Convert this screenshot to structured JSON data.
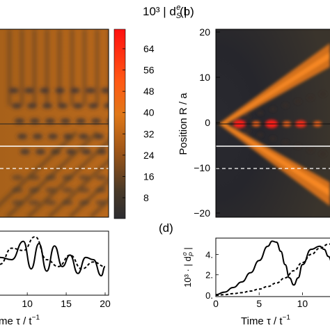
{
  "figure": {
    "colorbar_title": "10³ | d",
    "colorbar_title_sub": "S",
    "colorbar_title_sup": "e",
    "colorbar_title_end": " |",
    "colorbar_ticks": [
      "64",
      "56",
      "48",
      "40",
      "32",
      "24",
      "16",
      "8"
    ],
    "panel_labels": {
      "b": "(b)",
      "d": "(d)"
    }
  },
  "heatmaps": {
    "a": {
      "x_unit": "τ / t⁻¹"
    },
    "b": {
      "ylabel": "Position R / a",
      "yticks": [
        "20",
        "10",
        "0",
        "−10",
        "−20"
      ],
      "ylim": [
        -20,
        20
      ]
    }
  },
  "chart_data": [
    {
      "panel": "c",
      "type": "line",
      "xlabel": "Time τ / t⁻¹",
      "xlabel_visible": "me τ / t",
      "xlabel_sup": "−1",
      "xticks": [
        "10",
        "15",
        "20"
      ],
      "xlim": [
        6.5,
        20
      ],
      "series": [
        {
          "style": "solid",
          "x": [
            6.5,
            8,
            9.5,
            10.5,
            11.5,
            12.5,
            13.5,
            14.5,
            15.5,
            16.5,
            17.5,
            18.5,
            19.5,
            20
          ],
          "y": [
            0.55,
            0.5,
            0.9,
            0.3,
            0.85,
            0.25,
            0.8,
            0.35,
            0.6,
            0.2,
            0.55,
            0.5,
            0.15,
            0.35
          ]
        },
        {
          "style": "dashed",
          "x": [
            6.5,
            8,
            9.5,
            11,
            12.5,
            14,
            15.5,
            17,
            18.5,
            20
          ],
          "y": [
            0.4,
            0.75,
            0.7,
            1.0,
            0.5,
            0.35,
            0.6,
            0.3,
            0.45,
            0.35
          ]
        }
      ]
    },
    {
      "panel": "d",
      "type": "line",
      "xlabel": "Time τ / t⁻¹",
      "xlabel_visible": "Time τ / t",
      "xlabel_sup": "−1",
      "ylabel": "10³ · | d",
      "ylabel_sub": "P",
      "ylabel_sup": "o",
      "ylabel_end": " |",
      "xticks": [
        "0",
        "5",
        "10"
      ],
      "yticks": [
        "0.",
        "2.",
        "4."
      ],
      "xlim": [
        0,
        13.5
      ],
      "ylim": [
        0,
        5.6
      ],
      "series": [
        {
          "style": "solid",
          "x": [
            0,
            1,
            2,
            3,
            4,
            5,
            6,
            6.5,
            7,
            7.5,
            8,
            8.5,
            9,
            9.5,
            10,
            11,
            12,
            12.5,
            13,
            13.5
          ],
          "y": [
            0.05,
            0.3,
            0.75,
            1.3,
            2.2,
            3.4,
            4.8,
            5.3,
            5.2,
            4.3,
            3.0,
            1.7,
            1.0,
            1.7,
            3.0,
            4.5,
            4.8,
            4.5,
            3.8,
            3.0
          ]
        },
        {
          "style": "dashed",
          "x": [
            0,
            1,
            2,
            3,
            4,
            5,
            6,
            7,
            8,
            9,
            10,
            11,
            12,
            13,
            13.5
          ],
          "y": [
            0.0,
            0.05,
            0.15,
            0.25,
            0.4,
            0.6,
            0.85,
            1.2,
            1.7,
            2.4,
            3.2,
            4.0,
            4.6,
            5.0,
            5.1
          ]
        }
      ]
    }
  ],
  "colors": {
    "heat_low": "#2b2b2b",
    "heat_mid": "#d8701a",
    "heat_high": "#ff1a1a",
    "guide_line": "#ffffff"
  }
}
